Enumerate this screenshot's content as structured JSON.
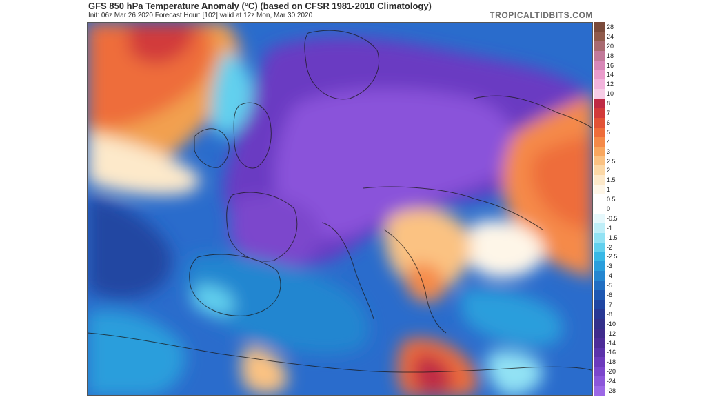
{
  "header": {
    "title": "GFS 850 hPa Temperature Anomaly (°C) (based on CFSR 1981-2010 Climatology)",
    "subtitle": "Init: 06z Mar 26 2020   Forecast Hour: [102]   valid at 12z Mon, Mar 30 2020",
    "brand": "TROPICALTIDBITS.COM"
  },
  "map": {
    "region": "Europe",
    "variable": "850 hPa Temperature Anomaly",
    "units": "°C"
  },
  "colorbar": {
    "labels": [
      "28",
      "24",
      "20",
      "18",
      "16",
      "14",
      "12",
      "10",
      "8",
      "7",
      "6",
      "5",
      "4",
      "3",
      "2.5",
      "2",
      "1.5",
      "1",
      "0.5",
      "0",
      "-0.5",
      "-1",
      "-1.5",
      "-2",
      "-2.5",
      "-3",
      "-4",
      "-5",
      "-6",
      "-7",
      "-8",
      "-10",
      "-12",
      "-14",
      "-16",
      "-18",
      "-20",
      "-24",
      "-28"
    ],
    "colors": [
      "#7a4a3a",
      "#8f5a4a",
      "#a86a70",
      "#c27a9a",
      "#d888b8",
      "#ea9ccc",
      "#f2b4dc",
      "#f7cde6",
      "#bf2a44",
      "#d23a3a",
      "#e25236",
      "#ee6d3a",
      "#f58a48",
      "#f9a75e",
      "#fbc282",
      "#fcd8a6",
      "#fde9ca",
      "#fef6e8",
      "#ffffff",
      "#ffffff",
      "#e6f8fc",
      "#bfeef8",
      "#92e2f4",
      "#62d0ee",
      "#38b8e6",
      "#2a9edc",
      "#2486d0",
      "#206ec2",
      "#1e58b2",
      "#2046a2",
      "#283894",
      "#33308a",
      "#3f2b8c",
      "#4d2c98",
      "#5b32aa",
      "#6c3abc",
      "#7c46cc",
      "#8c56da",
      "#9c68e6"
    ]
  }
}
